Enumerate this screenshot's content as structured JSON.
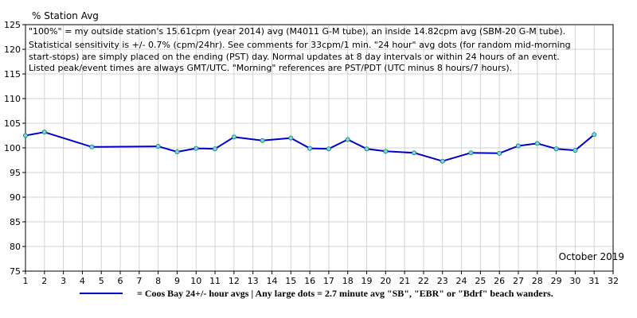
{
  "colors": {
    "line": "#0000cc",
    "marker_fill": "#66e0e0",
    "marker_stroke": "#2a6e6e",
    "grid": "#d2d2d2",
    "axis": "#000000"
  },
  "chart_data": {
    "type": "line",
    "title": "% Station Avg",
    "ylabel": "% Station Avg",
    "xlabel": "",
    "period_label": "October 2019",
    "xlim": [
      1,
      32
    ],
    "ylim": [
      75,
      125
    ],
    "x_ticks": [
      "1",
      "2",
      "3",
      "4",
      "5",
      "6",
      "7",
      "8",
      "9",
      "10",
      "11",
      "12",
      "13",
      "14",
      "15",
      "16",
      "17",
      "18",
      "19",
      "20",
      "21",
      "22",
      "23",
      "24",
      "25",
      "26",
      "27",
      "28",
      "29",
      "30",
      "31",
      "32"
    ],
    "y_ticks": [
      "75",
      "80",
      "85",
      "90",
      "95",
      "100",
      "105",
      "110",
      "115",
      "120",
      "125"
    ],
    "grid": true,
    "annotation_lines": [
      "\"100%\" = my outside station's 15.61cpm (year 2014) avg (M4011 G-M tube), an inside 14.82cpm avg (SBM-20 G-M tube).",
      "Statistical sensitivity is +/- 0.7% (cpm/24hr). See comments for 33cpm/1 min. \"24 hour\" avg dots (for random mid-morning",
      "start-stops) are simply placed on the ending (PST) day. Normal updates at 8 day intervals or within 24 hours of an event.",
      "Listed peak/event times are always GMT/UTC.  \"Morning\" references are PST/PDT (UTC minus 8 hours/7 hours)."
    ],
    "series": [
      {
        "name": "Coos Bay 24+/- hour avgs",
        "x": [
          1,
          2,
          4.5,
          8,
          9,
          10,
          11,
          12,
          13.5,
          15,
          16,
          17,
          18,
          19,
          20,
          21.5,
          23,
          24.5,
          26,
          27,
          28,
          29,
          30,
          31
        ],
        "y": [
          102.5,
          103.2,
          100.2,
          100.3,
          99.2,
          99.9,
          99.8,
          102.2,
          101.5,
          102.0,
          99.9,
          99.8,
          101.7,
          99.8,
          99.3,
          99.0,
          97.3,
          99.0,
          98.9,
          100.4,
          100.9,
          99.8,
          99.5,
          102.7
        ]
      }
    ],
    "legend_text": "= Coos Bay 24+/- hour avgs | Any large dots = 2.7 minute avg \"SB\", \"EBR\" or \"Bdrf\" beach wanders."
  }
}
